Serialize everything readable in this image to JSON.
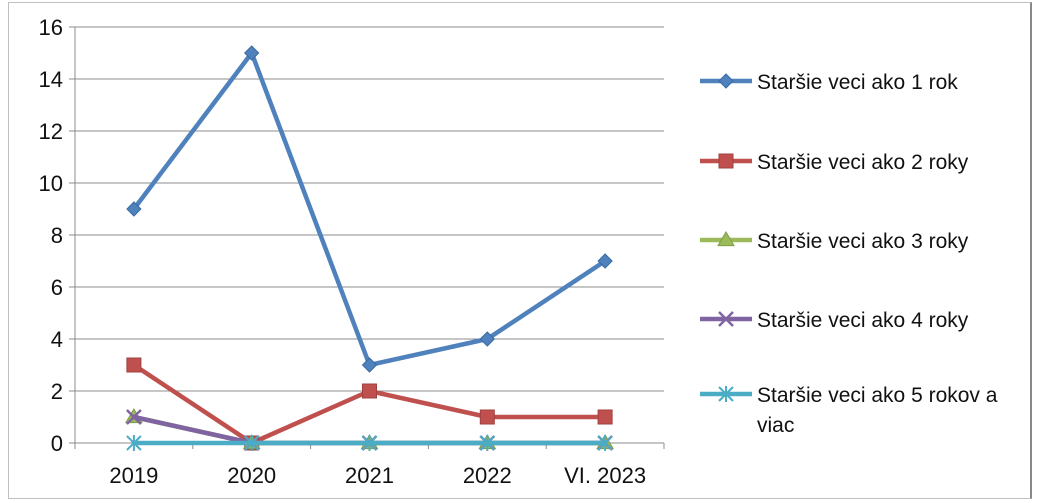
{
  "chart_data": {
    "type": "line",
    "categories": [
      "2019",
      "2020",
      "2021",
      "2022",
      "VI. 2023"
    ],
    "ylim": [
      0,
      16
    ],
    "yticks": [
      0,
      2,
      4,
      6,
      8,
      10,
      12,
      14,
      16
    ],
    "grid": true,
    "legend_position": "right",
    "series": [
      {
        "name": "Staršie veci ako 1 rok",
        "values": [
          9,
          15,
          3,
          4,
          7
        ],
        "color": "#4f81bd",
        "marker": "diamond"
      },
      {
        "name": "Staršie veci ako 2 roky",
        "values": [
          3,
          0,
          2,
          1,
          1
        ],
        "color": "#c0504d",
        "marker": "square"
      },
      {
        "name": "Staršie veci ako 3 roky",
        "values": [
          1,
          0,
          0,
          0,
          0
        ],
        "color": "#9bbb59",
        "marker": "triangle"
      },
      {
        "name": "Staršie veci ako 4 roky",
        "values": [
          1,
          0,
          0,
          0,
          0
        ],
        "color": "#8064a2",
        "marker": "x"
      },
      {
        "name": "Staršie veci ako 5 rokov a viac",
        "values": [
          0,
          0,
          0,
          0,
          0
        ],
        "color": "#4bacc6",
        "marker": "star"
      }
    ]
  }
}
